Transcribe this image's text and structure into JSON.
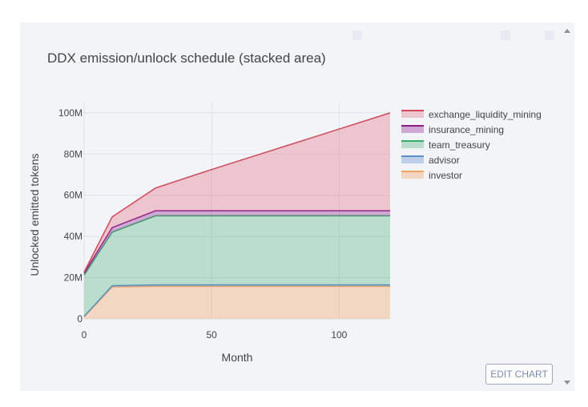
{
  "edit_button_label": "EDIT CHART",
  "chart_data": {
    "type": "area",
    "stacked": true,
    "title": "DDX emission/unlock schedule (stacked area)",
    "xlabel": "Month",
    "ylabel": "Unlocked emitted tokens",
    "xlim": [
      0,
      120
    ],
    "ylim": [
      0,
      105000000
    ],
    "x_ticks": [
      0,
      50,
      100
    ],
    "x_tick_labels": [
      "0",
      "50",
      "100"
    ],
    "y_ticks": [
      0,
      20000000,
      40000000,
      60000000,
      80000000,
      100000000
    ],
    "y_tick_labels": [
      "0",
      "20M",
      "40M",
      "60M",
      "80M",
      "100M"
    ],
    "grid": true,
    "legend_position": "right",
    "x": [
      0,
      11,
      28,
      50,
      120
    ],
    "series": [
      {
        "name": "investor",
        "color": "#f4a45e",
        "fill": "rgba(244,164,94,0.35)",
        "values": [
          1000000,
          15500000,
          15800000,
          15800000,
          15800000
        ]
      },
      {
        "name": "advisor",
        "color": "#5b8ed1",
        "fill": "rgba(91,142,209,0.35)",
        "values": [
          200000,
          600000,
          700000,
          700000,
          700000
        ]
      },
      {
        "name": "team_treasury",
        "color": "#39a96b",
        "fill": "rgba(57,169,107,0.30)",
        "values": [
          20000000,
          26000000,
          33500000,
          33500000,
          33500000
        ]
      },
      {
        "name": "insurance_mining",
        "color": "#8b1c8b",
        "fill": "rgba(139,28,139,0.35)",
        "values": [
          1000000,
          2200000,
          2500000,
          2500000,
          2500000
        ]
      },
      {
        "name": "exchange_liquidity_mining",
        "color": "#d04a5c",
        "fill": "rgba(226,90,110,0.30)",
        "values": [
          500000,
          5200000,
          11000000,
          20000000,
          47500000
        ]
      }
    ]
  }
}
